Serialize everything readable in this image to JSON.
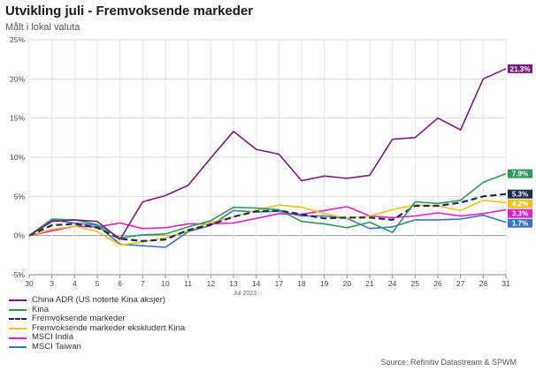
{
  "chart_data": {
    "type": "line",
    "title": "Utvikling juli - Fremvoksende markeder",
    "subtitle": "Målt i lokal valuta",
    "x_sublabel": "Jul 2023",
    "source": "Source: Refinitiv Datastream & SPWM",
    "x": [
      "30",
      "3",
      "4",
      "5",
      "6",
      "7",
      "10",
      "11",
      "12",
      "13",
      "14",
      "17",
      "18",
      "19",
      "20",
      "21",
      "24",
      "25",
      "26",
      "27",
      "28",
      "31"
    ],
    "y_ticks": [
      "25%",
      "20%",
      "15%",
      "10%",
      "5%",
      "0%",
      "-5%"
    ],
    "ylim": [
      -5,
      25
    ],
    "series": [
      {
        "name": "China ADR (US noterte Kina aksjer)",
        "color": "#7a1b7e",
        "dashed": false,
        "end_label": "21.3%",
        "values": [
          0,
          1.8,
          2.0,
          1.8,
          -0.5,
          4.3,
          5.1,
          6.4,
          9.9,
          13.3,
          11.0,
          10.4,
          7.0,
          7.6,
          7.3,
          7.7,
          12.3,
          12.5,
          15.0,
          13.5,
          20.0,
          21.3
        ]
      },
      {
        "name": "Kina",
        "color": "#2e9a5a",
        "dashed": false,
        "end_label": "7.9%",
        "values": [
          0,
          2.1,
          2.0,
          1.4,
          -0.3,
          0.1,
          0.2,
          1.1,
          1.9,
          3.6,
          3.5,
          3.3,
          1.8,
          1.5,
          1.0,
          1.7,
          0.4,
          4.3,
          4.1,
          4.5,
          6.8,
          7.9
        ]
      },
      {
        "name": "Fremvoksende markeder",
        "color": "#1c2a5a",
        "dashed": true,
        "end_label": "5.3%",
        "values": [
          0,
          1.3,
          1.5,
          1.0,
          -0.4,
          -0.7,
          -0.5,
          0.7,
          1.4,
          2.4,
          3.1,
          3.2,
          2.7,
          2.2,
          2.3,
          2.3,
          2.0,
          3.8,
          3.8,
          4.2,
          5.0,
          5.3
        ]
      },
      {
        "name": "Fremvoksende markeder ekskludert Kina",
        "color": "#f2c21b",
        "dashed": false,
        "end_label": "4.2%",
        "values": [
          0,
          0.8,
          1.2,
          0.5,
          -1.2,
          -0.8,
          -0.3,
          0.6,
          1.7,
          2.4,
          3.2,
          3.9,
          3.6,
          2.8,
          2.2,
          2.5,
          3.3,
          3.9,
          3.8,
          3.2,
          4.5,
          4.2
        ]
      },
      {
        "name": "MSCI India",
        "color": "#e020d0",
        "dashed": false,
        "end_label": "3.3%",
        "values": [
          0,
          0.6,
          1.2,
          1.1,
          1.6,
          0.9,
          1.0,
          1.5,
          1.5,
          1.6,
          2.2,
          2.8,
          2.7,
          3.2,
          3.7,
          2.5,
          2.3,
          2.5,
          2.9,
          2.5,
          2.8,
          3.3
        ]
      },
      {
        "name": "MSCI Taiwan",
        "color": "#3a74c4",
        "dashed": false,
        "end_label": "1.7%",
        "values": [
          0,
          2.0,
          1.6,
          1.3,
          -1.1,
          -1.3,
          -1.5,
          0.5,
          1.3,
          3.2,
          3.0,
          3.1,
          2.5,
          2.5,
          2.2,
          0.9,
          1.1,
          2.0,
          2.0,
          2.1,
          2.6,
          1.7
        ]
      }
    ]
  }
}
